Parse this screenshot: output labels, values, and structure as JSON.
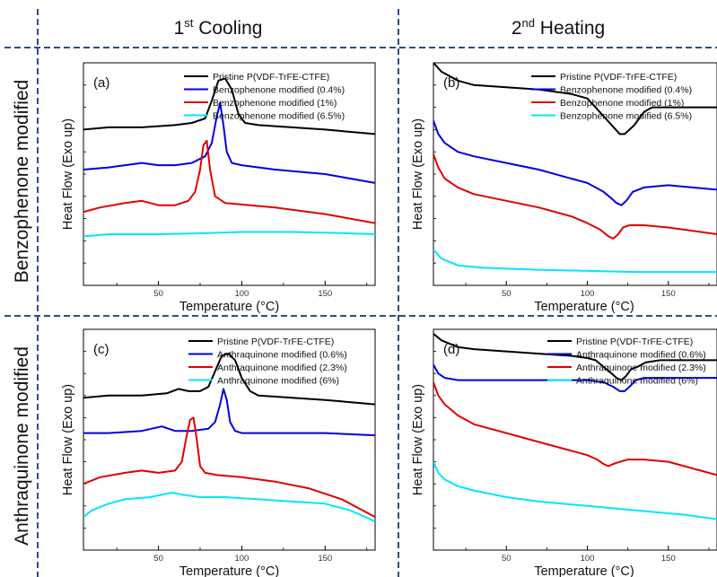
{
  "colors": {
    "black": "#000000",
    "blue": "#0000e0",
    "red": "#e00000",
    "cyan": "#00e6ff",
    "divider": "#2e4e86"
  },
  "columns": {
    "left": {
      "prefix": "1",
      "sup": "st",
      "suffix": " Cooling"
    },
    "right": {
      "prefix": "2",
      "sup": "nd",
      "suffix": " Heating"
    }
  },
  "rows": {
    "top": "Benzophenone modified",
    "bottom": "Anthraquinone modified"
  },
  "chart_data": [
    {
      "panel": "(a)",
      "type": "line",
      "xlabel": "Temperature (°C)",
      "ylabel": "Heat Flow (Exo up)",
      "xlim": [
        5,
        180
      ],
      "xticks": [
        50,
        100,
        150
      ],
      "yticks_labeled": false,
      "series": [
        {
          "name": "Pristine P(VDF-TrFE-CTFE)",
          "color": "#000000",
          "x": [
            5,
            20,
            40,
            60,
            70,
            78,
            82,
            86,
            90,
            94,
            98,
            102,
            110,
            130,
            150,
            180
          ],
          "y": [
            0.7,
            0.71,
            0.71,
            0.72,
            0.73,
            0.75,
            0.83,
            0.92,
            0.93,
            0.88,
            0.77,
            0.73,
            0.72,
            0.71,
            0.7,
            0.68
          ]
        },
        {
          "name": "Benzophenone modified (0.4%)",
          "color": "#0000e0",
          "x": [
            5,
            20,
            30,
            40,
            50,
            60,
            70,
            78,
            82,
            85,
            87,
            89,
            91,
            94,
            100,
            120,
            150,
            180
          ],
          "y": [
            0.52,
            0.53,
            0.54,
            0.55,
            0.54,
            0.54,
            0.55,
            0.58,
            0.64,
            0.76,
            0.82,
            0.72,
            0.6,
            0.55,
            0.54,
            0.52,
            0.5,
            0.46
          ]
        },
        {
          "name": "Benzophenone modified (1%)",
          "color": "#e00000",
          "x": [
            5,
            15,
            30,
            40,
            50,
            60,
            68,
            72,
            75,
            77,
            79,
            81,
            84,
            90,
            120,
            150,
            180
          ],
          "y": [
            0.33,
            0.35,
            0.37,
            0.38,
            0.36,
            0.36,
            0.38,
            0.42,
            0.52,
            0.63,
            0.65,
            0.52,
            0.4,
            0.37,
            0.35,
            0.32,
            0.28
          ]
        },
        {
          "name": "Benzophenone modified (6.5%)",
          "color": "#00e6ff",
          "x": [
            5,
            20,
            50,
            80,
            100,
            130,
            160,
            180
          ],
          "y": [
            0.22,
            0.23,
            0.23,
            0.235,
            0.24,
            0.24,
            0.235,
            0.23
          ]
        }
      ]
    },
    {
      "panel": "(b)",
      "type": "line",
      "xlabel": "Temperature (°C)",
      "ylabel": "Heat Flow (Exo up)",
      "xlim": [
        5,
        180
      ],
      "xticks": [
        50,
        100,
        150
      ],
      "yticks_labeled": false,
      "series": [
        {
          "name": "Pristine P(VDF-TrFE-CTFE)",
          "color": "#000000",
          "x": [
            5,
            10,
            20,
            30,
            50,
            70,
            90,
            100,
            105,
            110,
            115,
            120,
            123,
            126,
            129,
            132,
            135,
            140,
            150,
            180
          ],
          "y": [
            1.0,
            0.96,
            0.92,
            0.9,
            0.89,
            0.88,
            0.86,
            0.84,
            0.8,
            0.76,
            0.72,
            0.68,
            0.68,
            0.7,
            0.72,
            0.75,
            0.78,
            0.8,
            0.8,
            0.8
          ]
        },
        {
          "name": "Benzophenone modified (0.4%)",
          "color": "#0000e0",
          "x": [
            5,
            8,
            12,
            20,
            30,
            50,
            70,
            90,
            100,
            110,
            115,
            118,
            121,
            124,
            128,
            135,
            150,
            180
          ],
          "y": [
            0.74,
            0.68,
            0.64,
            0.6,
            0.58,
            0.55,
            0.52,
            0.48,
            0.46,
            0.42,
            0.39,
            0.37,
            0.36,
            0.38,
            0.42,
            0.44,
            0.45,
            0.43
          ]
        },
        {
          "name": "Benzophenone modified (1%)",
          "color": "#e00000",
          "x": [
            5,
            8,
            12,
            20,
            30,
            50,
            70,
            90,
            100,
            108,
            113,
            116,
            119,
            122,
            126,
            135,
            150,
            180
          ],
          "y": [
            0.59,
            0.53,
            0.48,
            0.44,
            0.41,
            0.38,
            0.35,
            0.31,
            0.28,
            0.25,
            0.22,
            0.21,
            0.23,
            0.26,
            0.27,
            0.27,
            0.26,
            0.23
          ]
        },
        {
          "name": "Benzophenone modified (6.5%)",
          "color": "#00e6ff",
          "x": [
            5,
            10,
            20,
            35,
            50,
            70,
            100,
            130,
            160,
            180
          ],
          "y": [
            0.16,
            0.12,
            0.09,
            0.08,
            0.075,
            0.07,
            0.065,
            0.06,
            0.06,
            0.06
          ]
        }
      ]
    },
    {
      "panel": "(c)",
      "type": "line",
      "xlabel": "Temperature (°C)",
      "ylabel": "Heat Flow (Exo up)",
      "xlim": [
        5,
        180
      ],
      "xticks": [
        50,
        100,
        150
      ],
      "yticks_labeled": false,
      "series": [
        {
          "name": "Pristine P(VDF-TrFE-CTFE)",
          "color": "#000000",
          "x": [
            5,
            20,
            40,
            55,
            62,
            68,
            75,
            80,
            84,
            88,
            92,
            96,
            100,
            105,
            110,
            130,
            150,
            180
          ],
          "y": [
            0.69,
            0.7,
            0.7,
            0.71,
            0.73,
            0.72,
            0.72,
            0.74,
            0.81,
            0.88,
            0.89,
            0.86,
            0.78,
            0.72,
            0.7,
            0.69,
            0.68,
            0.66
          ]
        },
        {
          "name": "Anthraquinone modified (0.6%)",
          "color": "#0000e0",
          "x": [
            5,
            20,
            40,
            52,
            60,
            70,
            80,
            84,
            87,
            89,
            91,
            93,
            96,
            100,
            120,
            150,
            180
          ],
          "y": [
            0.53,
            0.53,
            0.54,
            0.56,
            0.54,
            0.54,
            0.55,
            0.58,
            0.66,
            0.73,
            0.68,
            0.58,
            0.54,
            0.53,
            0.53,
            0.53,
            0.52
          ]
        },
        {
          "name": "Anthraquinone modified (2.3%)",
          "color": "#e00000",
          "x": [
            5,
            15,
            30,
            40,
            50,
            60,
            64,
            67,
            69,
            71,
            73,
            75,
            78,
            85,
            100,
            120,
            140,
            160,
            180
          ],
          "y": [
            0.3,
            0.33,
            0.35,
            0.36,
            0.35,
            0.36,
            0.4,
            0.52,
            0.59,
            0.6,
            0.5,
            0.38,
            0.35,
            0.34,
            0.33,
            0.31,
            0.28,
            0.23,
            0.15
          ]
        },
        {
          "name": "Anthraquinone modified (6%)",
          "color": "#00e6ff",
          "x": [
            5,
            10,
            20,
            30,
            45,
            58,
            65,
            75,
            90,
            110,
            130,
            150,
            165,
            180
          ],
          "y": [
            0.15,
            0.18,
            0.21,
            0.23,
            0.24,
            0.26,
            0.25,
            0.24,
            0.24,
            0.23,
            0.22,
            0.21,
            0.18,
            0.13
          ]
        }
      ]
    },
    {
      "panel": "(d)",
      "type": "line",
      "xlabel": "Temperature (°C)",
      "ylabel": "Heat Flow (Exo up)",
      "xlim": [
        5,
        180
      ],
      "xticks": [
        50,
        100,
        150
      ],
      "yticks_labeled": false,
      "series": [
        {
          "name": "Pristine P(VDF-TrFE-CTFE)",
          "color": "#000000",
          "x": [
            5,
            10,
            20,
            30,
            50,
            70,
            90,
            100,
            105,
            110,
            115,
            118,
            121,
            124,
            127,
            131,
            136,
            145,
            160,
            180
          ],
          "y": [
            0.98,
            0.95,
            0.92,
            0.91,
            0.9,
            0.89,
            0.88,
            0.87,
            0.86,
            0.83,
            0.8,
            0.78,
            0.77,
            0.79,
            0.82,
            0.83,
            0.85,
            0.86,
            0.86,
            0.86
          ]
        },
        {
          "name": "Anthraquinone modified (0.6%)",
          "color": "#0000e0",
          "x": [
            5,
            8,
            12,
            20,
            50,
            80,
            100,
            110,
            116,
            120,
            123,
            126,
            130,
            135,
            150,
            180
          ],
          "y": [
            0.84,
            0.8,
            0.78,
            0.77,
            0.77,
            0.77,
            0.77,
            0.76,
            0.74,
            0.72,
            0.72,
            0.74,
            0.77,
            0.78,
            0.78,
            0.78
          ]
        },
        {
          "name": "Anthraquinone modified (2.3%)",
          "color": "#e00000",
          "x": [
            5,
            8,
            12,
            20,
            30,
            50,
            70,
            90,
            100,
            106,
            110,
            113,
            116,
            120,
            125,
            135,
            150,
            165,
            180
          ],
          "y": [
            0.76,
            0.7,
            0.66,
            0.61,
            0.57,
            0.53,
            0.49,
            0.45,
            0.43,
            0.41,
            0.39,
            0.38,
            0.39,
            0.4,
            0.41,
            0.41,
            0.4,
            0.37,
            0.34
          ]
        },
        {
          "name": "Anthraquinone modified (6%)",
          "color": "#00e6ff",
          "x": [
            5,
            8,
            12,
            20,
            30,
            50,
            70,
            100,
            130,
            160,
            180
          ],
          "y": [
            0.4,
            0.35,
            0.32,
            0.29,
            0.27,
            0.24,
            0.22,
            0.2,
            0.18,
            0.16,
            0.14
          ]
        }
      ]
    }
  ]
}
